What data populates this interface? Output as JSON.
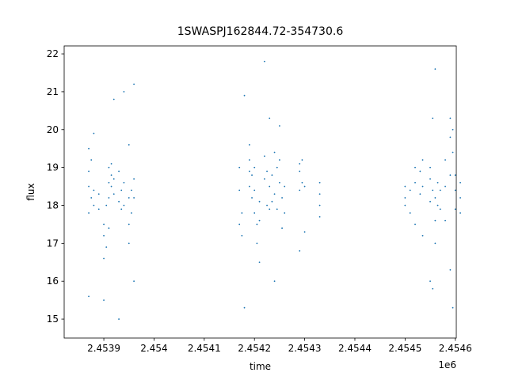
{
  "chart_data": {
    "type": "scatter",
    "title": "1SWASPJ162844.72-354730.6",
    "x_label": "time",
    "y_label": "flux",
    "x_offset_label": "1e6",
    "color": "#1f77b4",
    "x": [
      2.45387,
      2.45387,
      2.45387,
      2.45387,
      2.45387,
      2.453875,
      2.453875,
      2.45388,
      2.45388,
      2.45388,
      2.45389,
      2.45389,
      2.4539,
      2.4539,
      2.4539,
      2.4539,
      2.453905,
      2.453905,
      2.45391,
      2.45391,
      2.45391,
      2.45391,
      2.453915,
      2.453915,
      2.453915,
      2.45392,
      2.45392,
      2.45392,
      2.45393,
      2.45393,
      2.45393,
      2.453935,
      2.453935,
      2.45394,
      2.45394,
      2.45394,
      2.45395,
      2.45395,
      2.45395,
      2.45395,
      2.453955,
      2.453955,
      2.45396,
      2.45396,
      2.45396,
      2.45396,
      2.45417,
      2.45417,
      2.45417,
      2.454175,
      2.454175,
      2.45418,
      2.45418,
      2.45419,
      2.45419,
      2.45419,
      2.45419,
      2.454195,
      2.454195,
      2.4542,
      2.4542,
      2.4542,
      2.454205,
      2.454205,
      2.45421,
      2.45421,
      2.45421,
      2.45422,
      2.45422,
      2.45422,
      2.454225,
      2.454225,
      2.45423,
      2.45423,
      2.45423,
      2.454235,
      2.454235,
      2.45424,
      2.45424,
      2.45424,
      2.454245,
      2.454245,
      2.45425,
      2.45425,
      2.45425,
      2.454255,
      2.454255,
      2.45426,
      2.45426,
      2.45429,
      2.45429,
      2.45429,
      2.45429,
      2.454295,
      2.454295,
      2.4543,
      2.4543,
      2.45433,
      2.45433,
      2.45433,
      2.45433,
      2.4545,
      2.4545,
      2.4545,
      2.45451,
      2.45451,
      2.45452,
      2.45452,
      2.45452,
      2.45453,
      2.45453,
      2.454535,
      2.454535,
      2.454535,
      2.45455,
      2.45455,
      2.45455,
      2.45455,
      2.454555,
      2.454555,
      2.454555,
      2.45456,
      2.45456,
      2.45456,
      2.45456,
      2.454565,
      2.454565,
      2.45457,
      2.45457,
      2.45458,
      2.45458,
      2.45458,
      2.45459,
      2.45459,
      2.45459,
      2.45459,
      2.454595,
      2.454595,
      2.454595,
      2.4546,
      2.4546,
      2.4546,
      2.45461,
      2.45461,
      2.45461
    ],
    "y": [
      18.5,
      19.5,
      17.8,
      18.9,
      15.6,
      19.2,
      18.2,
      18.4,
      18.0,
      19.9,
      18.3,
      17.9,
      17.2,
      16.6,
      17.5,
      15.5,
      16.9,
      18.0,
      18.6,
      19.0,
      18.2,
      17.4,
      18.8,
      18.5,
      19.1,
      18.7,
      18.3,
      20.8,
      18.9,
      18.1,
      15.0,
      18.4,
      17.9,
      18.0,
      18.6,
      21.0,
      17.5,
      17.0,
      18.2,
      19.6,
      17.8,
      18.4,
      18.2,
      18.7,
      21.2,
      16.0,
      17.5,
      18.4,
      19.0,
      17.8,
      17.2,
      20.9,
      15.3,
      19.2,
      18.5,
      18.9,
      19.6,
      18.8,
      18.2,
      17.8,
      18.4,
      19.0,
      17.5,
      17.0,
      17.6,
      18.1,
      16.5,
      19.3,
      18.7,
      21.8,
      18.9,
      18.0,
      18.5,
      17.9,
      20.3,
      18.1,
      18.8,
      19.4,
      18.3,
      16.0,
      19.0,
      17.9,
      18.6,
      19.2,
      20.1,
      18.2,
      17.4,
      17.8,
      18.5,
      18.9,
      19.1,
      18.4,
      16.8,
      19.2,
      18.6,
      18.5,
      17.3,
      18.3,
      18.0,
      17.7,
      18.6,
      18.2,
      18.5,
      18.0,
      18.4,
      17.8,
      18.6,
      19.0,
      17.5,
      18.3,
      18.9,
      18.5,
      19.2,
      17.2,
      18.7,
      19.0,
      18.1,
      16.0,
      18.4,
      15.8,
      20.3,
      17.6,
      17.0,
      18.2,
      21.6,
      18.6,
      18.0,
      17.9,
      18.4,
      19.2,
      18.5,
      17.6,
      19.8,
      20.3,
      18.8,
      16.3,
      20.0,
      19.4,
      15.3,
      18.8,
      17.9,
      18.4,
      18.2,
      18.6,
      17.8
    ],
    "xlim": [
      2.453821,
      2.454602
    ],
    "ylim": [
      14.5,
      22.21
    ],
    "xticks": [
      2.4539,
      2.454,
      2.4541,
      2.4542,
      2.4543,
      2.4544,
      2.4545,
      2.4546
    ],
    "yticks": [
      15,
      16,
      17,
      18,
      19,
      20,
      21,
      22
    ]
  }
}
